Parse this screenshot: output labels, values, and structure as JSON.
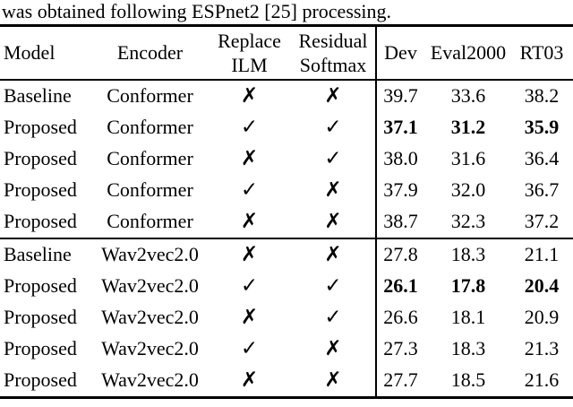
{
  "caption": "was obtained following ESPnet2 [25] processing.",
  "table": {
    "columns": {
      "model": "Model",
      "encoder": "Encoder",
      "replace_line1": "Replace",
      "replace_line2": "ILM",
      "residual_line1": "Residual",
      "residual_line2": "Softmax",
      "dev": "Dev",
      "eval2000": "Eval2000",
      "rt03": "RT03"
    },
    "marks": {
      "check": "✓",
      "cross": "✗"
    },
    "rows": [
      {
        "model": "Baseline",
        "encoder": "Conformer",
        "ilm": "✗",
        "softmax": "✗",
        "dev": "39.7",
        "eval2000": "33.6",
        "rt03": "38.2",
        "bold": false
      },
      {
        "model": "Proposed",
        "encoder": "Conformer",
        "ilm": "✓",
        "softmax": "✓",
        "dev": "37.1",
        "eval2000": "31.2",
        "rt03": "35.9",
        "bold": true
      },
      {
        "model": "Proposed",
        "encoder": "Conformer",
        "ilm": "✗",
        "softmax": "✓",
        "dev": "38.0",
        "eval2000": "31.6",
        "rt03": "36.4",
        "bold": false
      },
      {
        "model": "Proposed",
        "encoder": "Conformer",
        "ilm": "✓",
        "softmax": "✗",
        "dev": "37.9",
        "eval2000": "32.0",
        "rt03": "36.7",
        "bold": false
      },
      {
        "model": "Proposed",
        "encoder": "Conformer",
        "ilm": "✗",
        "softmax": "✗",
        "dev": "38.7",
        "eval2000": "32.3",
        "rt03": "37.2",
        "bold": false
      },
      {
        "model": "Baseline",
        "encoder": "Wav2vec2.0",
        "ilm": "✗",
        "softmax": "✗",
        "dev": "27.8",
        "eval2000": "18.3",
        "rt03": "21.1",
        "bold": false
      },
      {
        "model": "Proposed",
        "encoder": "Wav2vec2.0",
        "ilm": "✓",
        "softmax": "✓",
        "dev": "26.1",
        "eval2000": "17.8",
        "rt03": "20.4",
        "bold": true
      },
      {
        "model": "Proposed",
        "encoder": "Wav2vec2.0",
        "ilm": "✗",
        "softmax": "✓",
        "dev": "26.6",
        "eval2000": "18.1",
        "rt03": "20.9",
        "bold": false
      },
      {
        "model": "Proposed",
        "encoder": "Wav2vec2.0",
        "ilm": "✓",
        "softmax": "✗",
        "dev": "27.3",
        "eval2000": "18.3",
        "rt03": "21.3",
        "bold": false
      },
      {
        "model": "Proposed",
        "encoder": "Wav2vec2.0",
        "ilm": "✗",
        "softmax": "✗",
        "dev": "27.7",
        "eval2000": "18.5",
        "rt03": "21.6",
        "bold": false
      }
    ]
  }
}
